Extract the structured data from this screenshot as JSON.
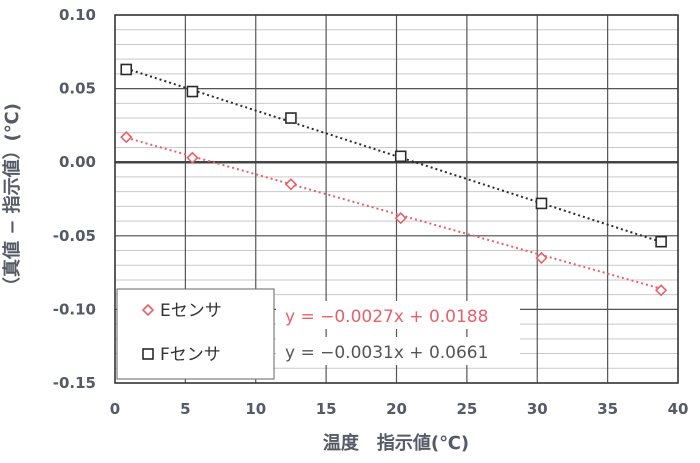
{
  "chart_data": {
    "type": "scatter",
    "xlabel": "温度　指示値(℃)",
    "ylabel": "（真値 − 指示値）(℃)",
    "xlim": [
      0,
      40
    ],
    "ylim": [
      -0.15,
      0.1
    ],
    "x_ticks": [
      "0",
      "5",
      "10",
      "15",
      "20",
      "25",
      "30",
      "35",
      "40"
    ],
    "y_ticks": [
      "0.10",
      "0.05",
      "0.00",
      "-0.05",
      "-0.10",
      "-0.15"
    ],
    "grid": true,
    "legend_position": "bottom-left",
    "series": [
      {
        "name": "Eセンサ",
        "marker": "diamond",
        "color": "#e8606a",
        "x": [
          0.8,
          5.5,
          12.5,
          20.3,
          30.3,
          38.8
        ],
        "y": [
          0.017,
          0.003,
          -0.015,
          -0.038,
          -0.065,
          -0.087
        ],
        "trendline": {
          "slope": -0.0027,
          "intercept": 0.0188,
          "equation": "y = −0.0027x + 0.0188"
        }
      },
      {
        "name": "Fセンサ",
        "marker": "square",
        "color": "#2b2b2b",
        "x": [
          0.8,
          5.5,
          12.5,
          20.3,
          30.3,
          38.8
        ],
        "y": [
          0.063,
          0.048,
          0.03,
          0.004,
          -0.028,
          -0.054
        ],
        "trendline": {
          "slope": -0.0031,
          "intercept": 0.0661,
          "equation": "y = −0.0031x + 0.0661"
        }
      }
    ]
  }
}
